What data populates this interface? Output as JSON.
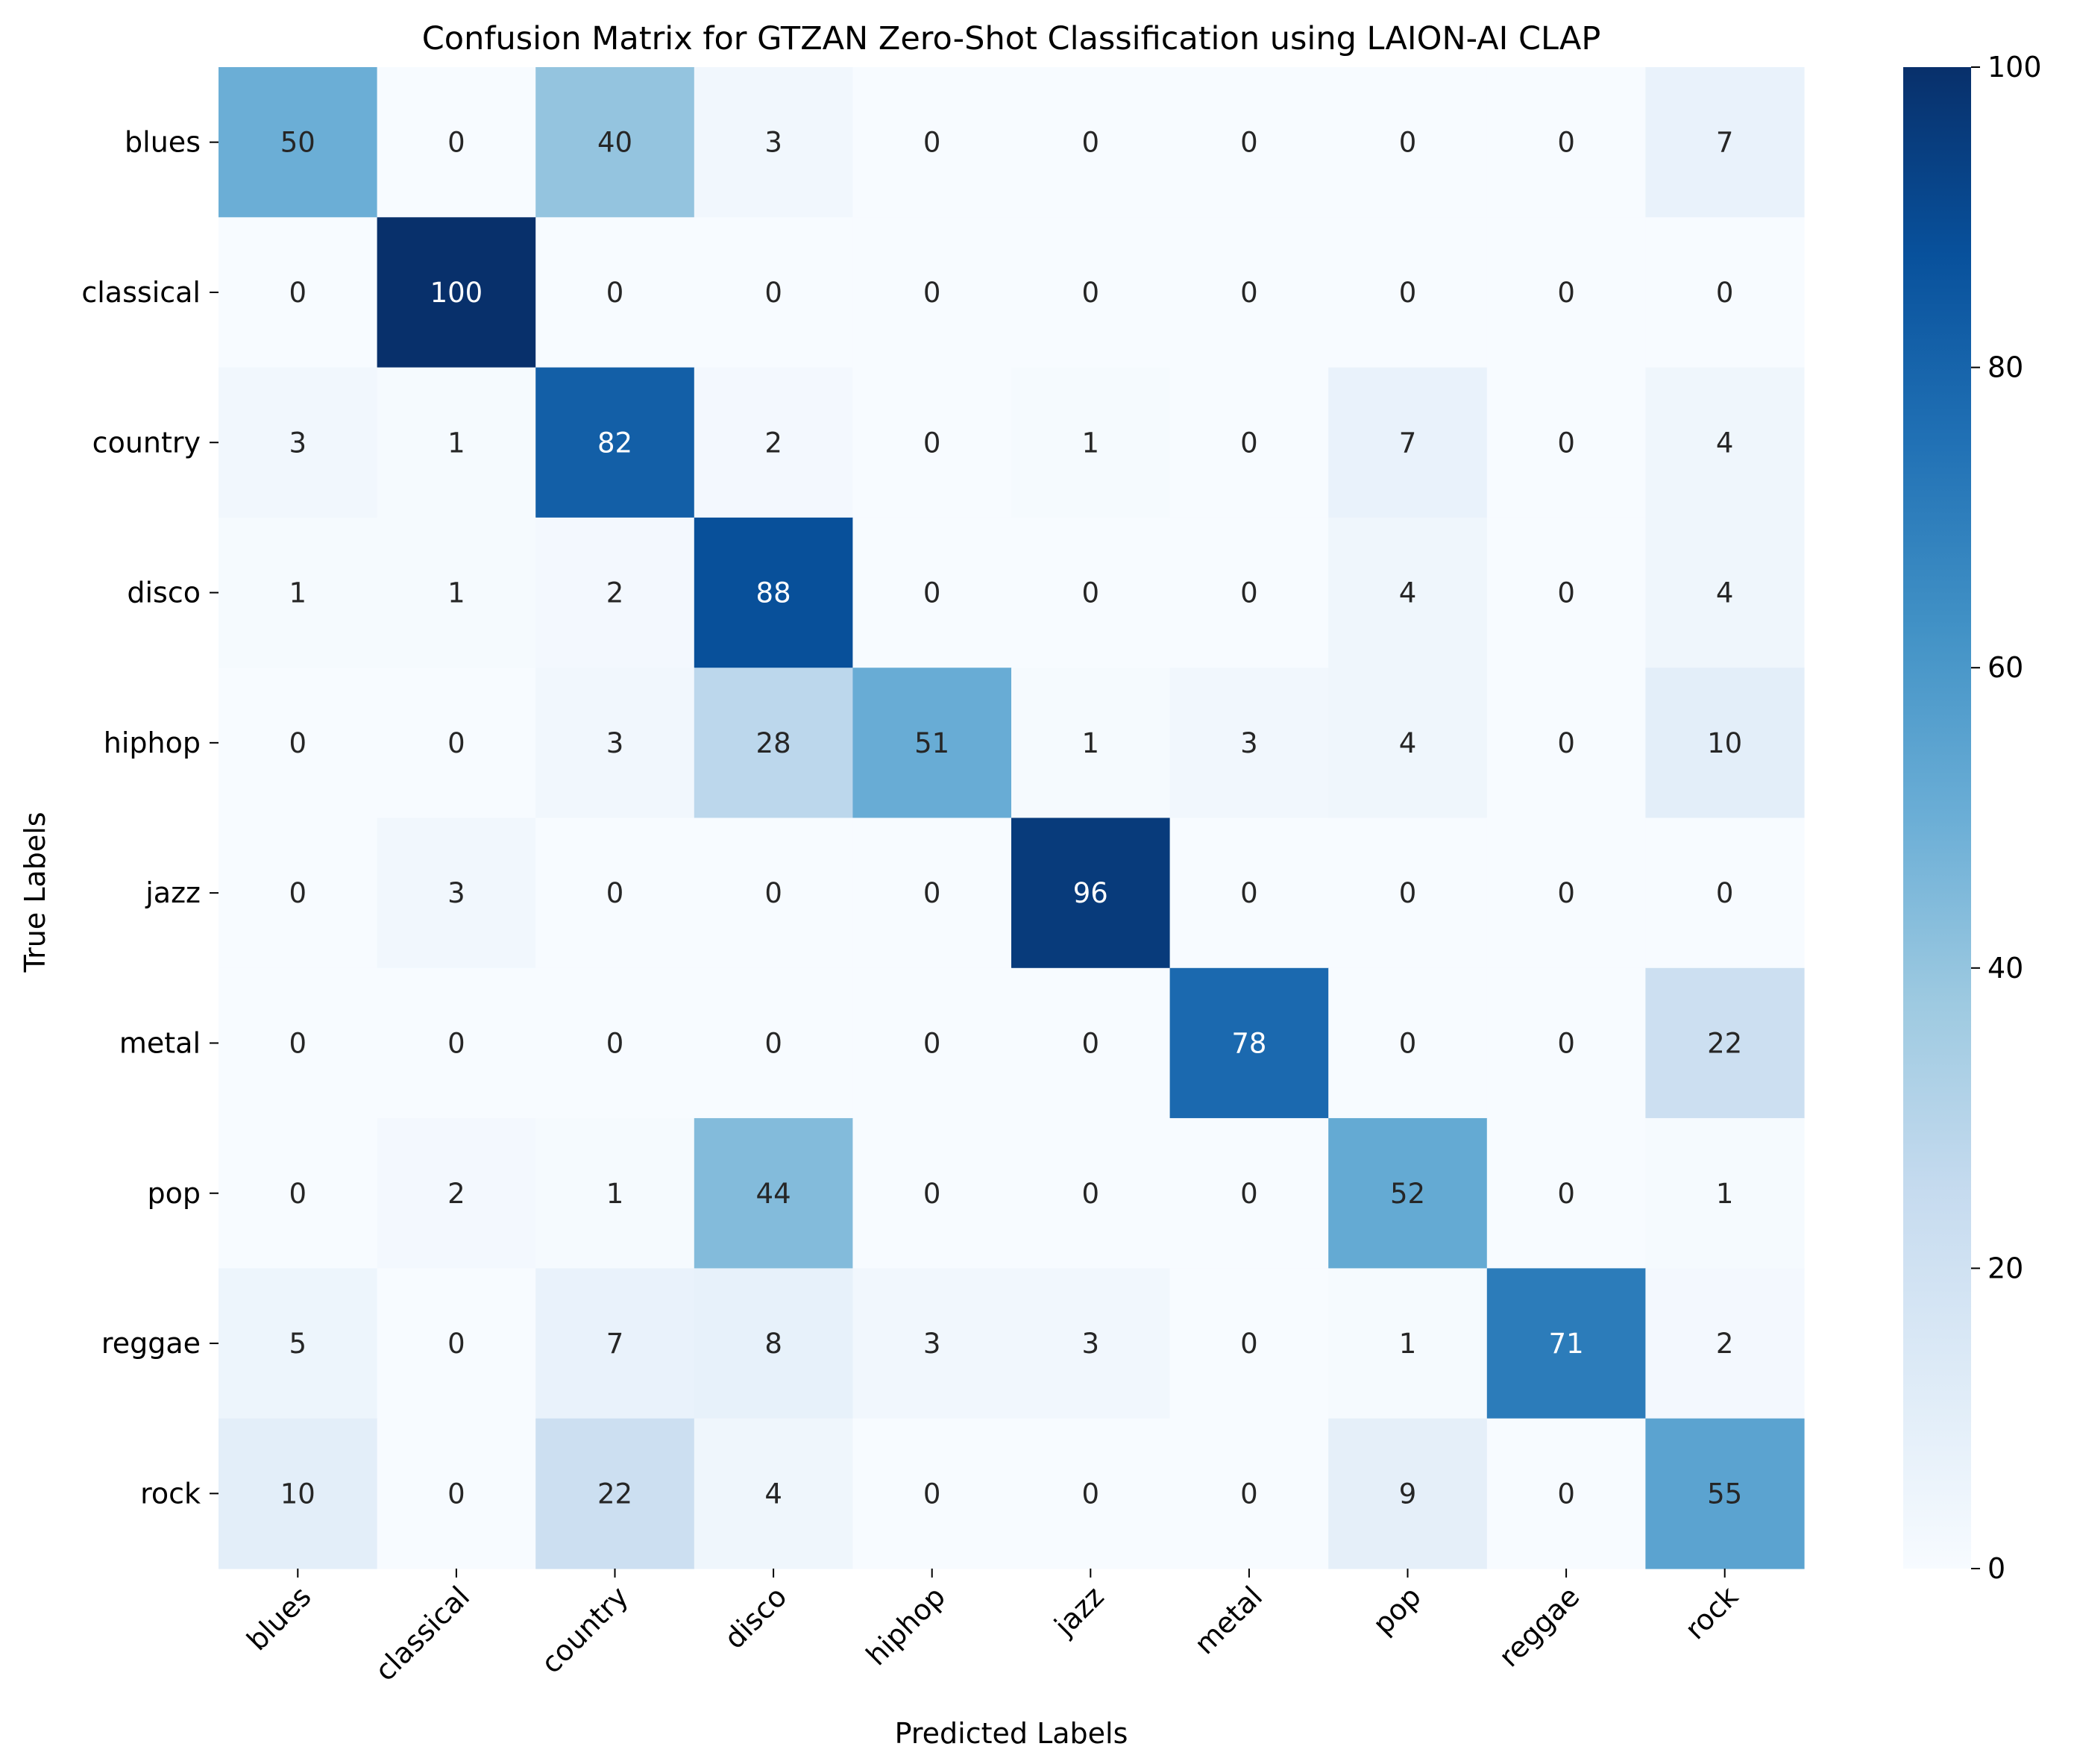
{
  "chart_data": {
    "type": "heatmap",
    "title": "Confusion Matrix for GTZAN Zero-Shot Classification using LAION-AI CLAP",
    "xlabel": "Predicted Labels",
    "ylabel": "True Labels",
    "x_categories": [
      "blues",
      "classical",
      "country",
      "disco",
      "hiphop",
      "jazz",
      "metal",
      "pop",
      "reggae",
      "rock"
    ],
    "y_categories": [
      "blues",
      "classical",
      "country",
      "disco",
      "hiphop",
      "jazz",
      "metal",
      "pop",
      "reggae",
      "rock"
    ],
    "values": [
      [
        50,
        0,
        40,
        3,
        0,
        0,
        0,
        0,
        0,
        7
      ],
      [
        0,
        100,
        0,
        0,
        0,
        0,
        0,
        0,
        0,
        0
      ],
      [
        3,
        1,
        82,
        2,
        0,
        1,
        0,
        7,
        0,
        4
      ],
      [
        1,
        1,
        2,
        88,
        0,
        0,
        0,
        4,
        0,
        4
      ],
      [
        0,
        0,
        3,
        28,
        51,
        1,
        3,
        4,
        0,
        10
      ],
      [
        0,
        3,
        0,
        0,
        0,
        96,
        0,
        0,
        0,
        0
      ],
      [
        0,
        0,
        0,
        0,
        0,
        0,
        78,
        0,
        0,
        22
      ],
      [
        0,
        2,
        1,
        44,
        0,
        0,
        0,
        52,
        0,
        1
      ],
      [
        5,
        0,
        7,
        8,
        3,
        3,
        0,
        1,
        71,
        2
      ],
      [
        10,
        0,
        22,
        4,
        0,
        0,
        0,
        9,
        0,
        55
      ]
    ],
    "colorbar": {
      "range": [
        0,
        100
      ],
      "ticks": [
        0,
        20,
        40,
        60,
        80,
        100
      ],
      "colormap": "Blues"
    },
    "x_tick_rotation_deg": -45,
    "annotations_shown": true,
    "grid": false
  }
}
